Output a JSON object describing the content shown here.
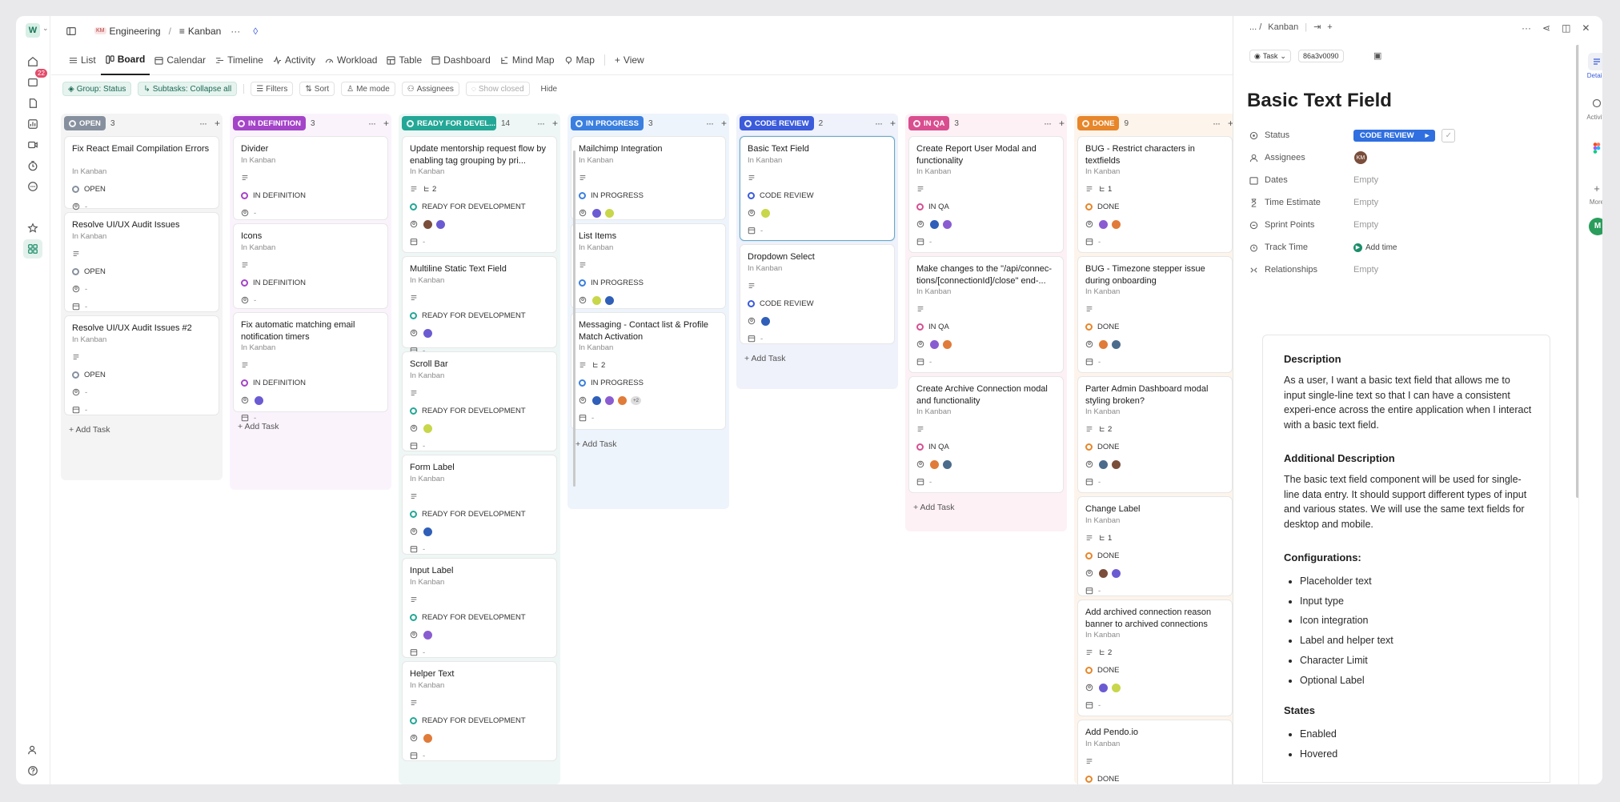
{
  "workspace": {
    "initial": "W",
    "notifications": "22"
  },
  "breadcrumb": {
    "space_badge": "KM",
    "space": "Engineering",
    "list": "Kanban"
  },
  "views": {
    "tabs": [
      "List",
      "Board",
      "Calendar",
      "Timeline",
      "Activity",
      "Workload",
      "Table",
      "Dashboard",
      "Mind Map",
      "Map"
    ],
    "add": "View",
    "active": "Board"
  },
  "filters": {
    "group": "Group: Status",
    "subtasks": "Subtasks: Collapse all",
    "filters": "Filters",
    "sort": "Sort",
    "me_mode": "Me mode",
    "assignees": "Assignees",
    "show_closed": "Show closed",
    "hide": "Hide"
  },
  "board": {
    "add_task": "Add Task",
    "columns": [
      {
        "name": "OPEN",
        "count": "3",
        "color": "#87909e",
        "tint": "#f4f4f5",
        "cards": [
          {
            "title": "Fix React Email Compilation Errors",
            "loc": "In Kanban",
            "status": "OPEN"
          },
          {
            "title": "Resolve UI/UX Audit Issues",
            "loc": "In Kanban",
            "status": "OPEN"
          },
          {
            "title": "Resolve UI/UX Audit Issues #2",
            "loc": "In Kanban",
            "status": "OPEN"
          }
        ]
      },
      {
        "name": "IN DEFINITION",
        "count": "3",
        "color": "#a444c8",
        "tint": "#faf3fc",
        "cards": [
          {
            "title": "Divider",
            "loc": "In Kanban",
            "status": "IN DEFINITION"
          },
          {
            "title": "Icons",
            "loc": "In Kanban",
            "status": "IN DEFINITION"
          },
          {
            "title": "Fix automatic matching email notification timers",
            "loc": "In Kanban",
            "status": "IN DEFINITION"
          }
        ]
      },
      {
        "name": "READY FOR DEVEL...",
        "count": "14",
        "color": "#24a796",
        "tint": "#eef7f5",
        "cards": [
          {
            "title": "Update mentorship request flow by enabling tag grouping by pri...",
            "loc": "In Kanban",
            "status": "READY FOR DEVELOPMENT",
            "sub": "2"
          },
          {
            "title": "Multiline Static Text Field",
            "loc": "In Kanban",
            "status": "READY FOR DEVELOPMENT"
          },
          {
            "title": "Scroll Bar",
            "loc": "In Kanban",
            "status": "READY FOR DEVELOPMENT"
          },
          {
            "title": "Form Label",
            "loc": "In Kanban",
            "status": "READY FOR DEVELOPMENT"
          },
          {
            "title": "Input Label",
            "loc": "In Kanban",
            "status": "READY FOR DEVELOPMENT"
          },
          {
            "title": "Helper Text",
            "loc": "In Kanban",
            "status": "READY FOR DEVELOPMENT"
          }
        ]
      },
      {
        "name": "IN PROGRESS",
        "count": "3",
        "color": "#3a7fe0",
        "tint": "#eef4fc",
        "cards": [
          {
            "title": "Mailchimp Integration",
            "loc": "In Kanban",
            "status": "IN PROGRESS"
          },
          {
            "title": "List Items",
            "loc": "In Kanban",
            "status": "IN PROGRESS"
          },
          {
            "title": "Messaging - Contact list & Profile Match Activation",
            "loc": "In Kanban",
            "status": "IN PROGRESS",
            "sub": "2",
            "more": "+2"
          }
        ]
      },
      {
        "name": "CODE REVIEW",
        "count": "2",
        "color": "#3b5bdb",
        "tint": "#eff1fb",
        "cards": [
          {
            "title": "Basic Text Field",
            "loc": "In Kanban",
            "status": "CODE REVIEW"
          },
          {
            "title": "Dropdown Select",
            "loc": "In Kanban",
            "status": "CODE REVIEW"
          }
        ]
      },
      {
        "name": "IN QA",
        "count": "3",
        "color": "#d94e8f",
        "tint": "#fdf1f5",
        "cards": [
          {
            "title": "Create Report User Modal and functionality",
            "loc": "In Kanban",
            "status": "IN QA"
          },
          {
            "title": "Make changes to the \"/api/connec-tions/[connectionId]/close\" end-...",
            "loc": "In Kanban",
            "status": "IN QA"
          },
          {
            "title": "Create Archive Connection modal and functionality",
            "loc": "In Kanban",
            "status": "IN QA"
          }
        ]
      },
      {
        "name": "DONE",
        "count": "9",
        "color": "#e7862a",
        "tint": "#fdf4ec",
        "cards": [
          {
            "title": "BUG - Restrict characters in textfields",
            "loc": "In Kanban",
            "status": "DONE",
            "sub": "1"
          },
          {
            "title": "BUG - Timezone stepper issue during onboarding",
            "loc": "In Kanban",
            "status": "DONE"
          },
          {
            "title": "Parter Admin Dashboard modal styling broken?",
            "loc": "In Kanban",
            "status": "DONE",
            "sub": "2"
          },
          {
            "title": "Change Label",
            "loc": "In Kanban",
            "status": "DONE",
            "sub": "1"
          },
          {
            "title": "Add archived connection reason banner to archived connections",
            "loc": "In Kanban",
            "status": "DONE",
            "sub": "2"
          },
          {
            "title": "Add Pendo.io",
            "loc": "In Kanban",
            "status": "DONE"
          }
        ]
      }
    ]
  },
  "panel": {
    "breadcrumb": "Kanban",
    "task_type": "Task",
    "task_id": "86a3v0090",
    "title": "Basic Text Field",
    "fields": {
      "status_label": "Status",
      "status_value": "CODE REVIEW",
      "assignees_label": "Assignees",
      "assignee_initials": "KM",
      "dates_label": "Dates",
      "time_label": "Time Estimate",
      "sprint_label": "Sprint Points",
      "track_label": "Track Time",
      "track_value": "Add time",
      "rel_label": "Relationships",
      "empty": "Empty"
    },
    "description": {
      "h1": "Description",
      "p1": "As a user, I want a basic text field that allows me to input single-line text so that I can have a consistent experi-ence across the entire application when I interact with a basic text field.",
      "h2": "Additional Description",
      "p2": "The basic text field component will be used for single-line data entry. It should support different types of input and various states. We will use the same text fields for desktop and mobile.",
      "h3": "Configurations:",
      "config": [
        "Placeholder text",
        "Input type",
        "Icon integration",
        "Label and helper text",
        "Character Limit",
        "Optional Label"
      ],
      "h4": "States",
      "states": [
        "Enabled",
        "Hovered"
      ]
    },
    "side": {
      "details": "Details",
      "activity": "Activity",
      "more": "More"
    }
  }
}
